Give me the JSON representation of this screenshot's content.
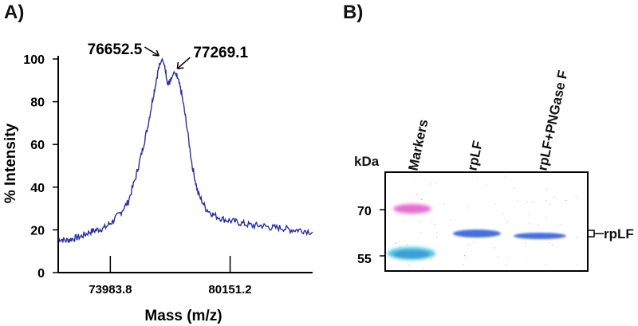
{
  "panels": {
    "a_label": "A)",
    "b_label": "B)"
  },
  "chart_data": [
    {
      "type": "line",
      "xlabel": "Mass (m/z)",
      "ylabel": "% Intensity",
      "ylim": [
        0,
        100
      ],
      "y_ticks": [
        "0",
        "20",
        "40",
        "60",
        "80",
        "100"
      ],
      "x_ticks": [
        "73983.8",
        "80151.2"
      ],
      "x_tick_values": [
        73983.8,
        80151.2
      ],
      "xlim": [
        71300,
        84400
      ],
      "line_color": "#2a2ea0",
      "grid": false,
      "annotations": [
        {
          "text": "76652.5",
          "x": 76652.5,
          "y": 100
        },
        {
          "text": "77269.1",
          "x": 77269.1,
          "y": 94
        }
      ],
      "series": [
        {
          "x": [
            71300,
            71700,
            72100,
            72500,
            72900,
            73300,
            73700,
            74100,
            74500,
            74900,
            75300,
            75600,
            75900,
            76200,
            76450,
            76652.5,
            76800,
            76950,
            77100,
            77269.1,
            77450,
            77650,
            77900,
            78200,
            78500,
            78900,
            79300,
            79800,
            80300,
            80800,
            81300,
            81800,
            82300,
            82800,
            83300,
            83800,
            84400
          ],
          "y": [
            16,
            15,
            16,
            17,
            19,
            20,
            21,
            24,
            28,
            33,
            45,
            56,
            68,
            83,
            95,
            100,
            96,
            88,
            90,
            94,
            91,
            84,
            70,
            50,
            37,
            30,
            27,
            25,
            24,
            23,
            22,
            22,
            21,
            21,
            20,
            20,
            19
          ]
        }
      ]
    },
    {
      "type": "other",
      "description_free": true,
      "units_label": "kDa",
      "lanes": [
        "Markers",
        "rpLF",
        "rpLF+PNGase F"
      ],
      "marker_ticks": [
        "70",
        "55"
      ],
      "band_label": "rpLF"
    }
  ],
  "colors": {
    "marker_pink": "#e46fd0",
    "marker_cyan": "#4fc3df",
    "band_blue": "#4a6fd8"
  }
}
